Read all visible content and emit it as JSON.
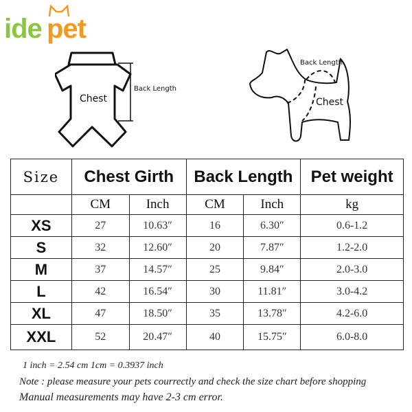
{
  "logo": {
    "text_green": "ide",
    "text_orange": "pet",
    "colors": {
      "green": "#8cc63f",
      "orange": "#f39a1e"
    }
  },
  "diagrams": {
    "garment": {
      "chest_label": "Chest",
      "back_label": "Back Length"
    },
    "dog": {
      "chest_label": "Chest",
      "back_label": "Back Length"
    }
  },
  "table": {
    "headers": {
      "size": "Size",
      "chest": "Chest Girth",
      "back": "Back Length",
      "weight": "Pet weight"
    },
    "subheaders": [
      "CM",
      "Inch",
      "CM",
      "Inch",
      "kg"
    ],
    "rows": [
      {
        "size": "XS",
        "chest_cm": "27",
        "chest_in": "10.63″",
        "back_cm": "16",
        "back_in": "6.30″",
        "kg": "0.6-1.2"
      },
      {
        "size": "S",
        "chest_cm": "32",
        "chest_in": "12.60″",
        "back_cm": "20",
        "back_in": "7.87″",
        "kg": "1.2-2.0"
      },
      {
        "size": "M",
        "chest_cm": "37",
        "chest_in": "14.57″",
        "back_cm": "25",
        "back_in": "9.84″",
        "kg": "2.0-3.0"
      },
      {
        "size": "L",
        "chest_cm": "42",
        "chest_in": "16.54″",
        "back_cm": "30",
        "back_in": "11.81″",
        "kg": "3.0-4.2"
      },
      {
        "size": "XL",
        "chest_cm": "47",
        "chest_in": "18.50″",
        "back_cm": "35",
        "back_in": "13.78″",
        "kg": "4.2-6.0"
      },
      {
        "size": "XXL",
        "chest_cm": "52",
        "chest_in": "20.47″",
        "back_cm": "40",
        "back_in": "15.75″",
        "kg": "6.0-8.0"
      }
    ]
  },
  "notes": {
    "conversion": "1 inch = 2.54 cm    1cm = 0.3937 inch",
    "note": "Note : please measure your pets courrectly and check the size chart before shopping",
    "error": "Manual measurements may have 2-3 cm error."
  }
}
